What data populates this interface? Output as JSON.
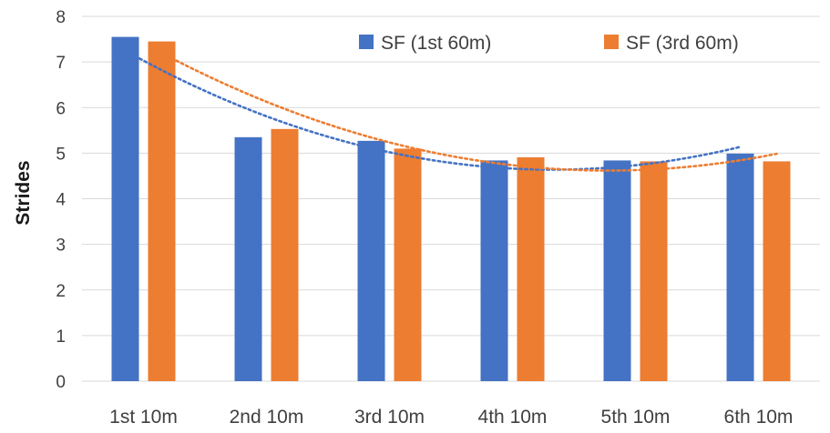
{
  "chart_data": {
    "type": "bar",
    "title": "",
    "xlabel": "",
    "ylabel": "Strides",
    "ylim": [
      0,
      8
    ],
    "yticks": [
      0,
      1,
      2,
      3,
      4,
      5,
      6,
      7,
      8
    ],
    "grid": true,
    "legend_position": "top-right",
    "categories": [
      "1st 10m",
      "2nd 10m",
      "3rd 10m",
      "4th 10m",
      "5th 10m",
      "6th 10m"
    ],
    "series": [
      {
        "name": "SF (1st 60m)",
        "color": "#4472c4",
        "values": [
          7.55,
          5.35,
          5.27,
          4.84,
          4.84,
          4.99
        ]
      },
      {
        "name": "SF (3rd 60m)",
        "color": "#ed7d31",
        "values": [
          7.45,
          5.53,
          5.1,
          4.91,
          4.82,
          4.82
        ]
      }
    ],
    "trendlines": [
      {
        "type": "polynomial",
        "style": "dotted",
        "color": "#4472c4",
        "series": "SF (1st 60m)"
      },
      {
        "type": "polynomial",
        "style": "dotted",
        "color": "#ed7d31",
        "series": "SF (3rd 60m)"
      }
    ]
  }
}
